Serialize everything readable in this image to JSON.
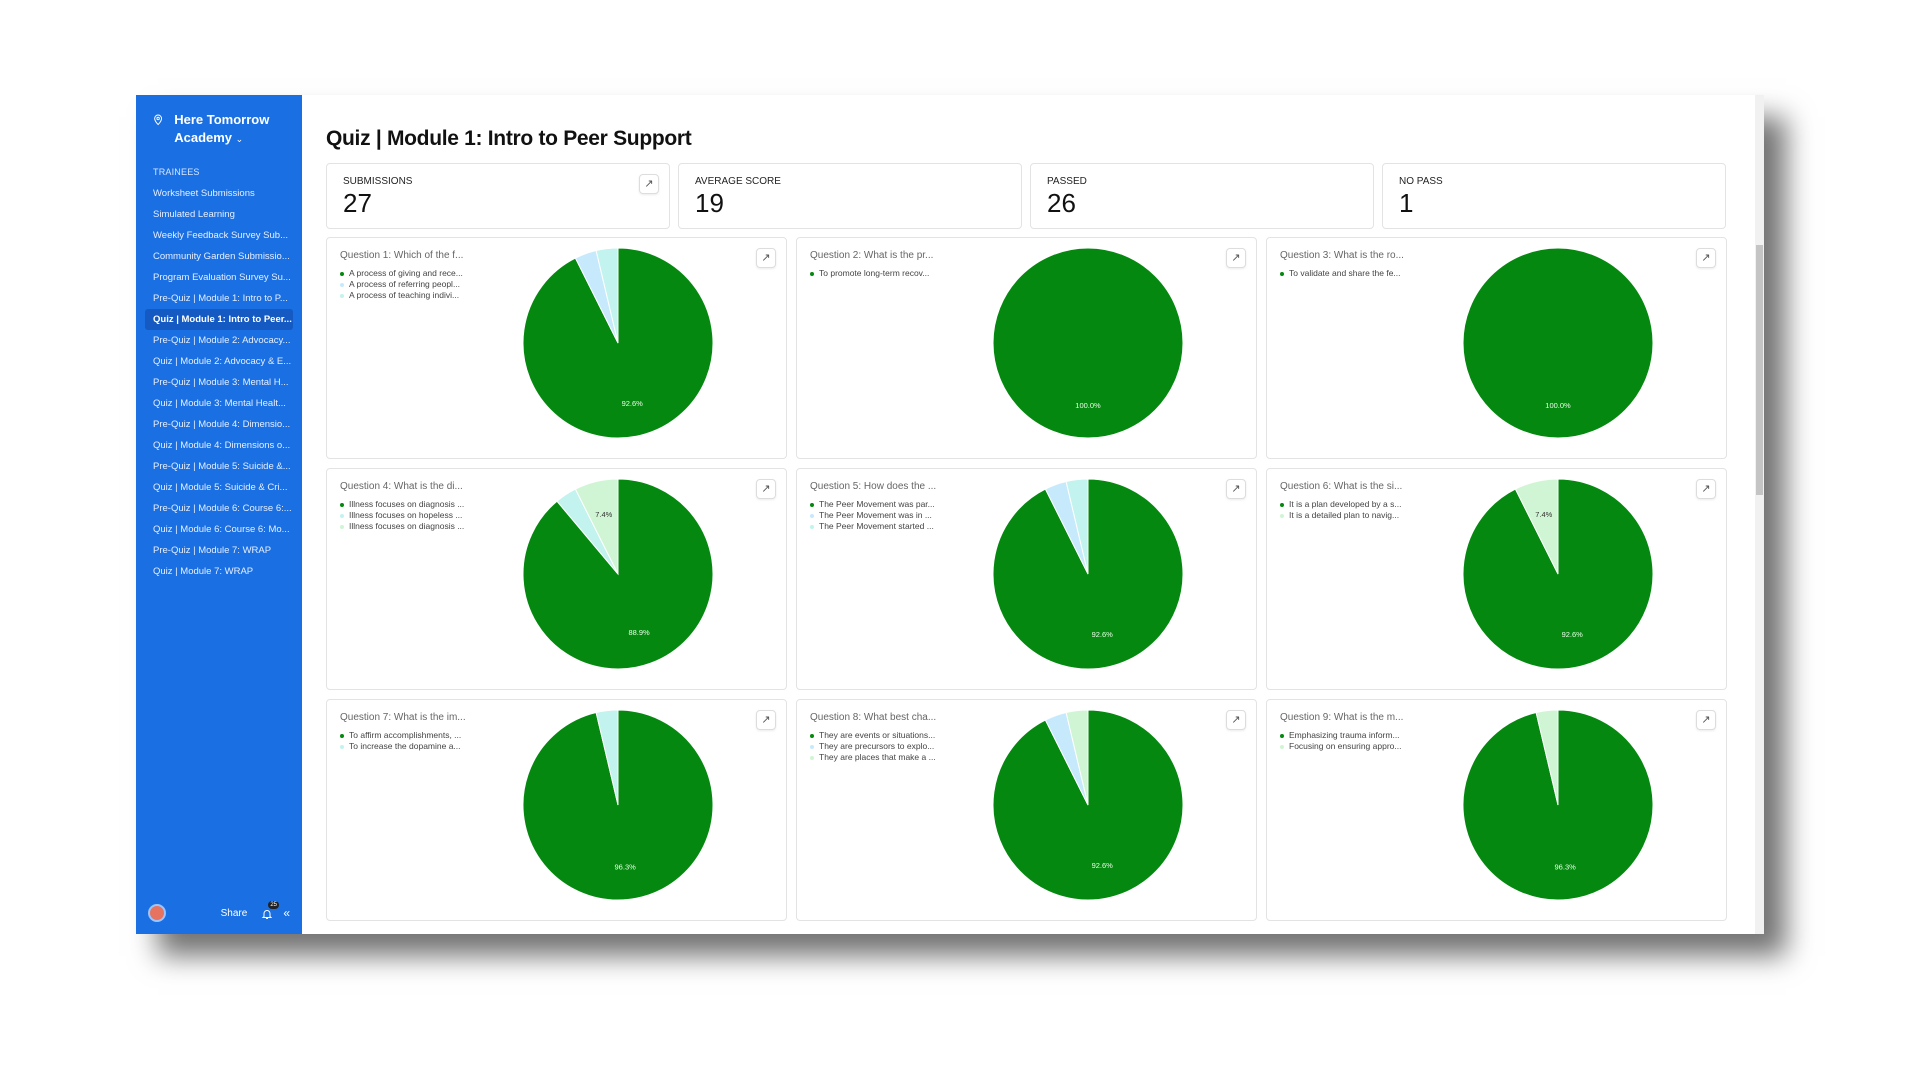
{
  "sidebar": {
    "brand": "Here Tomorrow Academy",
    "section": "TRAINEES",
    "items": [
      {
        "label": "Worksheet Submissions"
      },
      {
        "label": "Simulated Learning"
      },
      {
        "label": "Weekly Feedback Survey Sub..."
      },
      {
        "label": "Community Garden Submissio..."
      },
      {
        "label": "Program Evaluation Survey Su..."
      },
      {
        "label": "Pre-Quiz | Module 1: Intro to P..."
      },
      {
        "label": "Quiz | Module 1: Intro to Peer...",
        "active": true
      },
      {
        "label": "Pre-Quiz | Module 2: Advocacy..."
      },
      {
        "label": "Quiz | Module 2: Advocacy & E..."
      },
      {
        "label": "Pre-Quiz | Module 3: Mental H..."
      },
      {
        "label": "Quiz | Module 3: Mental Healt..."
      },
      {
        "label": "Pre-Quiz | Module 4: Dimensio..."
      },
      {
        "label": "Quiz | Module 4: Dimensions o..."
      },
      {
        "label": "Pre-Quiz | Module 5: Suicide &..."
      },
      {
        "label": "Quiz | Module 5: Suicide & Cri..."
      },
      {
        "label": "Pre-Quiz | Module 6: Course 6:..."
      },
      {
        "label": "Quiz | Module 6: Course 6: Mo..."
      },
      {
        "label": "Pre-Quiz | Module 7: WRAP"
      },
      {
        "label": "Quiz | Module 7: WRAP"
      }
    ],
    "footer": {
      "share": "Share",
      "notifications": "25"
    }
  },
  "page": {
    "title": "Quiz | Module 1: Intro to Peer Support"
  },
  "stats": [
    {
      "label": "SUBMISSIONS",
      "value": "27",
      "expandable": true
    },
    {
      "label": "AVERAGE SCORE",
      "value": "19"
    },
    {
      "label": "PASSED",
      "value": "26"
    },
    {
      "label": "NO PASS",
      "value": "1"
    }
  ],
  "colors": {
    "sidebar": "#1a6fe3",
    "green": "#05880f",
    "light_blue": "#c6eafc",
    "cyan": "#c2f3ee",
    "light_green": "#d0f5d4"
  },
  "chart_data": [
    {
      "type": "pie",
      "title": "Question 1: Which of the f...",
      "labels": [
        "A process of giving and rece...",
        "A process of referring peopl...",
        "A process of teaching indivi..."
      ],
      "values": [
        92.6,
        3.7,
        3.7
      ],
      "colors": [
        "#05880f",
        "#c6eafc",
        "#c2f3ee"
      ]
    },
    {
      "type": "pie",
      "title": "Question 2: What is the pr...",
      "labels": [
        "To promote long-term recov..."
      ],
      "values": [
        100.0
      ],
      "colors": [
        "#05880f"
      ]
    },
    {
      "type": "pie",
      "title": "Question 3: What is the ro...",
      "labels": [
        "To validate and share the fe..."
      ],
      "values": [
        100.0
      ],
      "colors": [
        "#05880f"
      ]
    },
    {
      "type": "pie",
      "title": "Question 4: What is the di...",
      "labels": [
        "Illness focuses on diagnosis ...",
        "Illness focuses on hopeless ...",
        "Illness focuses on diagnosis ..."
      ],
      "values": [
        88.9,
        3.7,
        7.4
      ],
      "colors": [
        "#05880f",
        "#c2f3ee",
        "#d0f5d4"
      ]
    },
    {
      "type": "pie",
      "title": "Question 5: How does the ...",
      "labels": [
        "The Peer Movement was par...",
        "The Peer Movement was in ...",
        "The Peer Movement started ..."
      ],
      "values": [
        92.6,
        3.7,
        3.7
      ],
      "colors": [
        "#05880f",
        "#c6eafc",
        "#c2f3ee"
      ]
    },
    {
      "type": "pie",
      "title": "Question 6: What is the si...",
      "labels": [
        "It is a plan developed by a s...",
        "It is a detailed plan to navig..."
      ],
      "values": [
        92.6,
        7.4
      ],
      "colors": [
        "#05880f",
        "#d0f5d4"
      ]
    },
    {
      "type": "pie",
      "title": "Question 7: What is the im...",
      "labels": [
        "To affirm accomplishments, ...",
        "To increase the dopamine a..."
      ],
      "values": [
        96.3,
        3.7
      ],
      "colors": [
        "#05880f",
        "#c2f3ee"
      ]
    },
    {
      "type": "pie",
      "title": "Question 8: What best cha...",
      "labels": [
        "They are events or situations...",
        "They are precursors to explo...",
        "They are places that make a ..."
      ],
      "values": [
        92.6,
        3.7,
        3.7
      ],
      "colors": [
        "#05880f",
        "#c6eafc",
        "#d0f5d4"
      ]
    },
    {
      "type": "pie",
      "title": "Question 9: What is the m...",
      "labels": [
        "Emphasizing trauma inform...",
        "Focusing on ensuring appro..."
      ],
      "values": [
        96.3,
        3.7
      ],
      "colors": [
        "#05880f",
        "#d0f5d4"
      ]
    }
  ]
}
